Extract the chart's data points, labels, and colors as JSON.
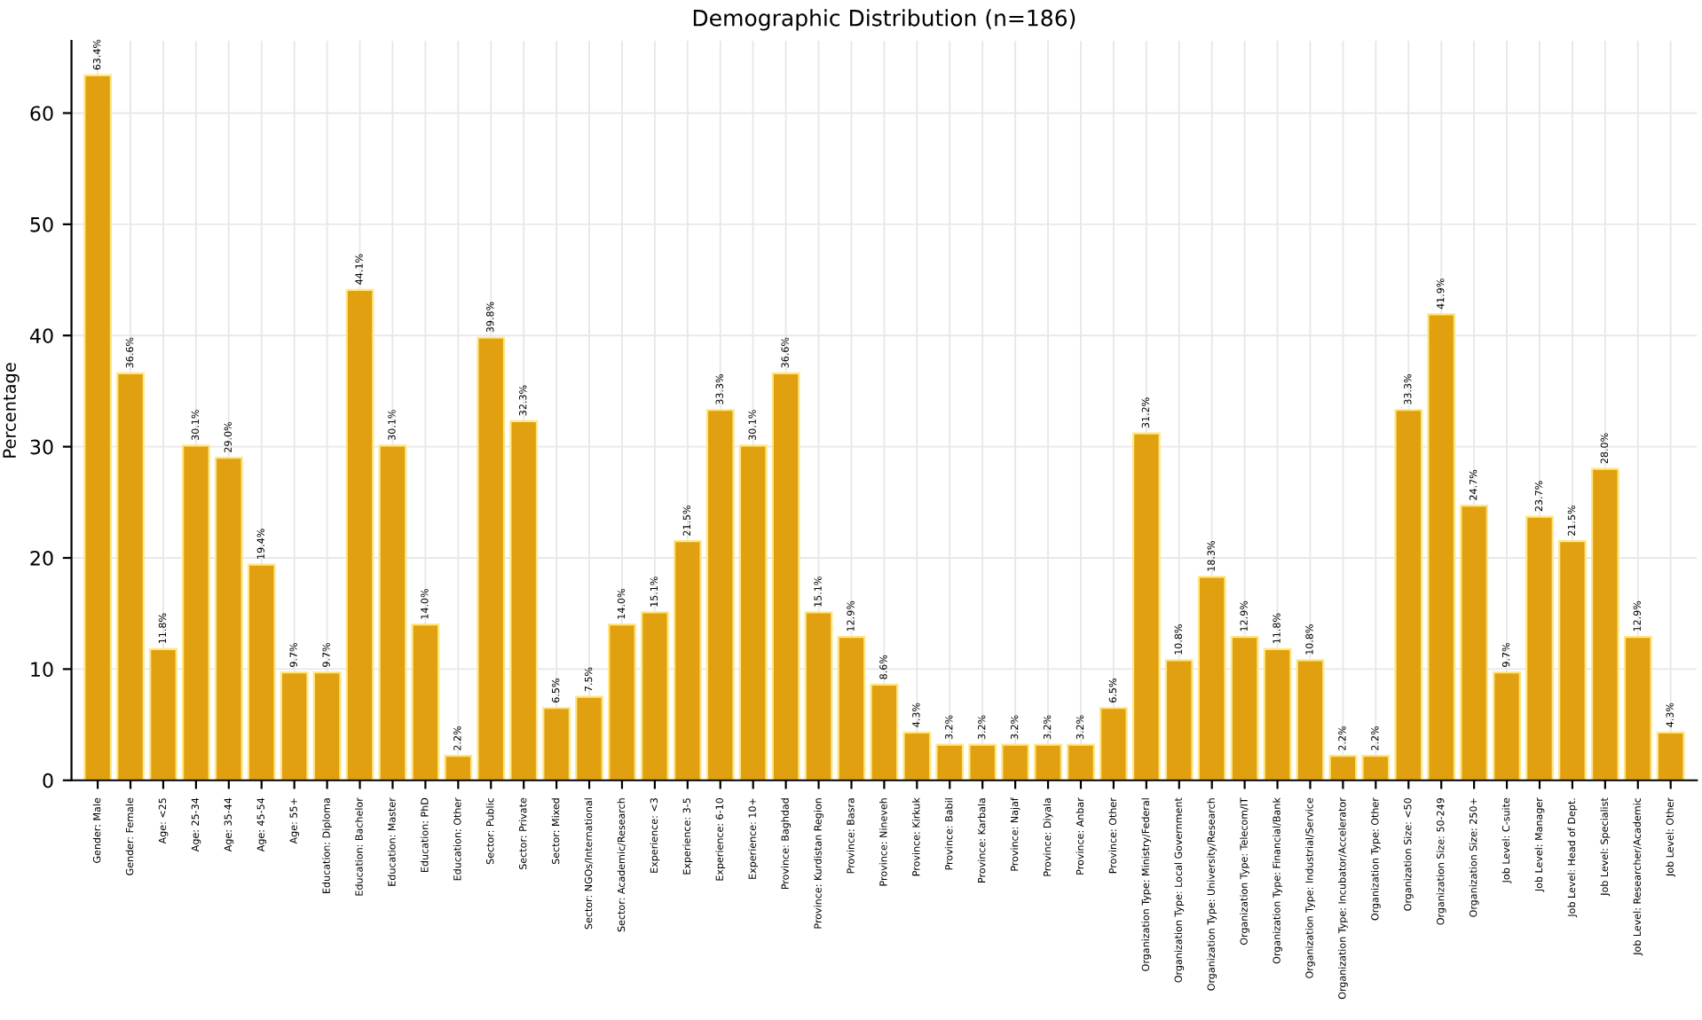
{
  "chart_data": {
    "type": "bar",
    "title": "Demographic Distribution (n=186)",
    "ylabel": "Percentage",
    "categories": [
      "Gender: Male",
      "Gender: Female",
      "Age: <25",
      "Age: 25-34",
      "Age: 35-44",
      "Age: 45-54",
      "Age: 55+",
      "Education: Diploma",
      "Education: Bachelor",
      "Education: Master",
      "Education: PhD",
      "Education: Other",
      "Sector: Public",
      "Sector: Private",
      "Sector: Mixed",
      "Sector: NGOs/International",
      "Sector: Academic/Research",
      "Experience: <3",
      "Experience: 3-5",
      "Experience: 6-10",
      "Experience: 10+",
      "Province: Baghdad",
      "Province: Kurdistan Region",
      "Province: Basra",
      "Province: Nineveh",
      "Province: Kirkuk",
      "Province: Babil",
      "Province: Karbala",
      "Province: Najaf",
      "Province: Diyala",
      "Province: Anbar",
      "Province: Other",
      "Organization Type: Ministry/Federal",
      "Organization Type: Local Government",
      "Organization Type: University/Research",
      "Organization Type: Telecom/IT",
      "Organization Type: Financial/Bank",
      "Organization Type: Industrial/Service",
      "Organization Type: Incubator/Accelerator",
      "Organization Type: Other",
      "Organization Size: <50",
      "Organization Size: 50-249",
      "Organization Size: 250+",
      "Job Level: C-suite",
      "Job Level: Manager",
      "Job Level: Head of Dept.",
      "Job Level: Specialist",
      "Job Level: Researcher/Academic",
      "Job Level: Other"
    ],
    "values": [
      63.4,
      36.6,
      11.8,
      30.1,
      29.0,
      19.4,
      9.7,
      9.7,
      44.1,
      30.1,
      14.0,
      2.2,
      39.8,
      32.3,
      6.5,
      7.5,
      14.0,
      15.1,
      21.5,
      33.3,
      30.1,
      36.6,
      15.1,
      12.9,
      8.6,
      4.3,
      3.2,
      3.2,
      3.2,
      3.2,
      3.2,
      6.5,
      31.2,
      10.8,
      18.3,
      12.9,
      11.8,
      10.8,
      2.2,
      2.2,
      33.3,
      41.9,
      24.7,
      9.7,
      23.7,
      21.5,
      28.0,
      12.9,
      4.3
    ],
    "value_labels": [
      "63.4%",
      "36.6%",
      "11.8%",
      "30.1%",
      "29.0%",
      "19.4%",
      "9.7%",
      "9.7%",
      "44.1%",
      "30.1%",
      "14.0%",
      "2.2%",
      "39.8%",
      "32.3%",
      "6.5%",
      "7.5%",
      "14.0%",
      "15.1%",
      "21.5%",
      "33.3%",
      "30.1%",
      "36.6%",
      "15.1%",
      "12.9%",
      "8.6%",
      "4.3%",
      "3.2%",
      "3.2%",
      "3.2%",
      "3.2%",
      "3.2%",
      "6.5%",
      "31.2%",
      "10.8%",
      "18.3%",
      "12.9%",
      "11.8%",
      "10.8%",
      "2.2%",
      "2.2%",
      "33.3%",
      "41.9%",
      "24.7%",
      "9.7%",
      "23.7%",
      "21.5%",
      "28.0%",
      "12.9%",
      "4.3%"
    ],
    "color": "#e0a010",
    "ylim": [
      0,
      66.5
    ],
    "yticks": [
      0,
      10,
      20,
      30,
      40,
      50,
      60
    ],
    "grid": true
  }
}
